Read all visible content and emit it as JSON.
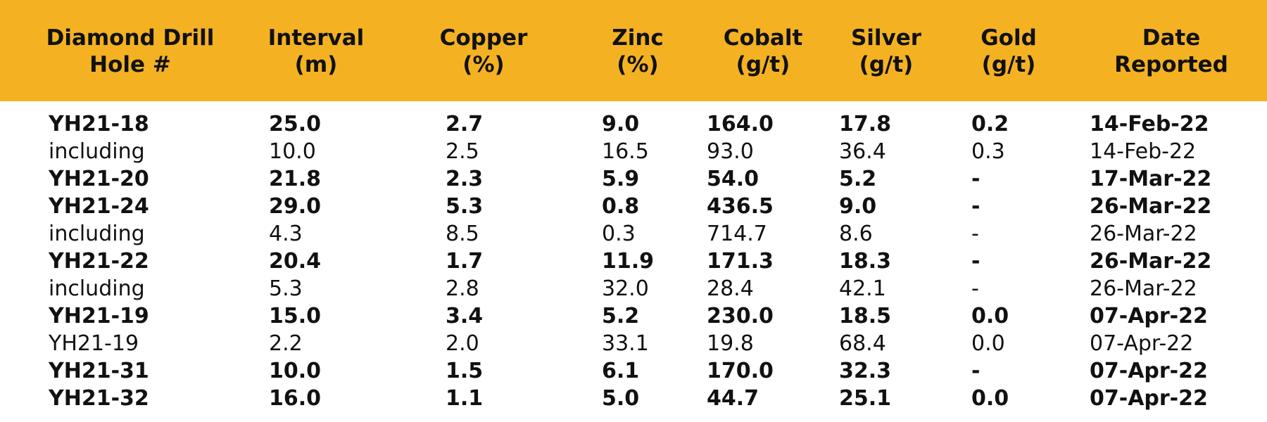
{
  "table": {
    "headers": [
      [
        "Diamond Drill",
        "Hole #"
      ],
      [
        "Interval",
        "(m)"
      ],
      [
        "Copper",
        "(%)"
      ],
      [
        "Zinc",
        "(%)"
      ],
      [
        "Cobalt",
        "(g/t)"
      ],
      [
        "Silver",
        "(g/t)"
      ],
      [
        "Gold",
        "(g/t)"
      ],
      [
        "Date",
        "Reported"
      ]
    ],
    "rows": [
      {
        "bold": true,
        "cells": [
          "YH21-18",
          "25.0",
          "2.7",
          "9.0",
          "164.0",
          "17.8",
          "0.2",
          "14-Feb-22"
        ]
      },
      {
        "bold": false,
        "cells": [
          "including",
          "10.0",
          "2.5",
          "16.5",
          "93.0",
          "36.4",
          "0.3",
          "14-Feb-22"
        ]
      },
      {
        "bold": true,
        "cells": [
          "YH21-20",
          "21.8",
          "2.3",
          "5.9",
          "54.0",
          "5.2",
          "-",
          "17-Mar-22"
        ]
      },
      {
        "bold": true,
        "cells": [
          "YH21-24",
          "29.0",
          "5.3",
          "0.8",
          "436.5",
          "9.0",
          "-",
          "26-Mar-22"
        ]
      },
      {
        "bold": false,
        "cells": [
          "including",
          "4.3",
          "8.5",
          "0.3",
          "714.7",
          "8.6",
          "-",
          "26-Mar-22"
        ]
      },
      {
        "bold": true,
        "cells": [
          "YH21-22",
          "20.4",
          "1.7",
          "11.9",
          "171.3",
          "18.3",
          "-",
          "26-Mar-22"
        ]
      },
      {
        "bold": false,
        "cells": [
          "including",
          "5.3",
          "2.8",
          "32.0",
          "28.4",
          "42.1",
          "-",
          "26-Mar-22"
        ]
      },
      {
        "bold": true,
        "cells": [
          "YH21-19",
          "15.0",
          "3.4",
          "5.2",
          "230.0",
          "18.5",
          "0.0",
          "07-Apr-22"
        ]
      },
      {
        "bold": false,
        "cells": [
          "YH21-19",
          "2.2",
          "2.0",
          "33.1",
          "19.8",
          "68.4",
          "0.0",
          "07-Apr-22"
        ]
      },
      {
        "bold": true,
        "cells": [
          "YH21-31",
          "10.0",
          "1.5",
          "6.1",
          "170.0",
          "32.3",
          "-",
          "07-Apr-22"
        ]
      },
      {
        "bold": true,
        "cells": [
          "YH21-32",
          "16.0",
          "1.1",
          "5.0",
          "44.7",
          "25.1",
          "0.0",
          "07-Apr-22"
        ]
      }
    ]
  }
}
